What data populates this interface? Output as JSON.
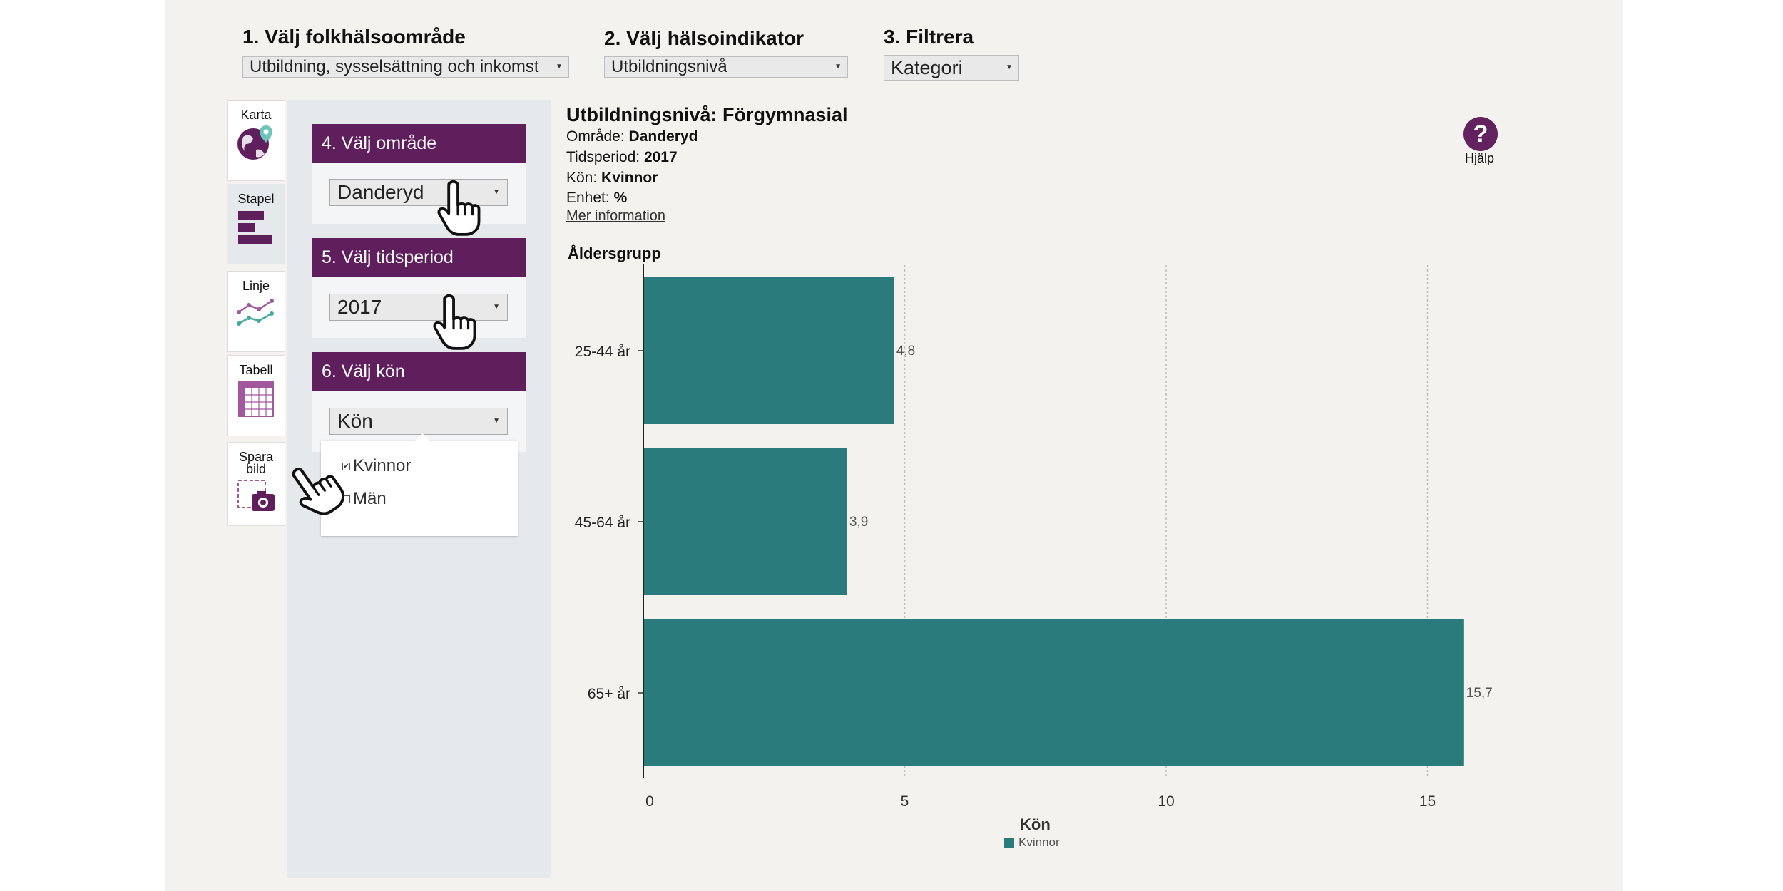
{
  "steps": {
    "area_group": {
      "title": "1. Välj folkhälsoområde",
      "selected": "Utbildning, sysselsättning och inkomst"
    },
    "indicator": {
      "title": "2. Välj hälsoindikator",
      "selected": "Utbildningsnivå"
    },
    "filter": {
      "title": "3. Filtrera",
      "selected": "Kategori"
    }
  },
  "view_tabs": [
    {
      "label": "Karta",
      "icon": "globe-icon"
    },
    {
      "label": "Stapel",
      "icon": "bar-chart-icon"
    },
    {
      "label": "Linje",
      "icon": "line-chart-icon"
    },
    {
      "label": "Tabell",
      "icon": "table-icon"
    },
    {
      "label": "Spara bild",
      "icon": "camera-icon"
    }
  ],
  "filters": {
    "area": {
      "title": "4. Välj område",
      "selected": "Danderyd"
    },
    "period": {
      "title": "5. Välj tidsperiod",
      "selected": "2017"
    },
    "sex": {
      "title": "6. Välj kön",
      "selected": "Kön",
      "options": [
        {
          "label": "Kvinnor",
          "checked": true
        },
        {
          "label": "Män",
          "checked": false
        }
      ]
    }
  },
  "info": {
    "title_prefix": "Utbildningsnivå",
    "title_value": "Förgymnasial",
    "area_label": "Område:",
    "area_value": "Danderyd",
    "period_label": "Tidsperiod:",
    "period_value": "2017",
    "sex_label": "Kön:",
    "sex_value": "Kvinnor",
    "unit_label": "Enhet:",
    "unit_value": "%",
    "more_info": "Mer information"
  },
  "help": {
    "label": "Hjälp",
    "icon": "help-icon"
  },
  "colors": {
    "accent": "#5f1f5d",
    "bar": "#2a7b7b",
    "panel": "#e6e9ec",
    "background": "#f3f2ef"
  },
  "chart_data": {
    "type": "bar",
    "orientation": "horizontal",
    "title": "",
    "ylabel": "Åldersgrupp",
    "xlabel": "",
    "categories": [
      "25-44 år",
      "45-64 år",
      "65+ år"
    ],
    "series": [
      {
        "name": "Kvinnor",
        "values": [
          4.8,
          3.9,
          15.7
        ]
      }
    ],
    "data_labels": [
      "4,8",
      "3,9",
      "15,7"
    ],
    "x_ticks": [
      0,
      5,
      10,
      15
    ],
    "xlim": [
      0,
      15.7
    ],
    "grid": true,
    "legend": {
      "title": "Kön",
      "position": "bottom"
    }
  }
}
